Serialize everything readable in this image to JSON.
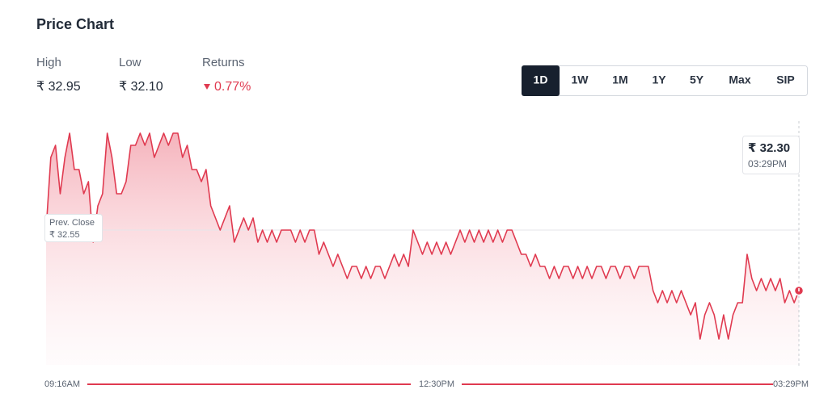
{
  "header": {
    "title": "Price Chart"
  },
  "stats": [
    {
      "label": "High",
      "value": "₹ 32.95"
    },
    {
      "label": "Low",
      "value": "₹ 32.10"
    },
    {
      "label": "Returns",
      "value": "0.77%"
    }
  ],
  "ranges": [
    "1D",
    "1W",
    "1M",
    "1Y",
    "5Y",
    "Max",
    "SIP"
  ],
  "active_range": "1D",
  "chart_data": {
    "type": "line",
    "color": "#e03a50",
    "ylim": [
      32.0,
      33.0
    ],
    "x_labels": [
      "09:16AM",
      "12:30PM",
      "03:29PM"
    ],
    "prev_close": 32.55,
    "prev_close_title": "Prev. Close",
    "prev_close_label": "₹ 32.55",
    "current_label": "₹ 32.30",
    "values": [
      32.55,
      32.85,
      32.9,
      32.7,
      32.85,
      32.95,
      32.8,
      32.8,
      32.7,
      32.75,
      32.5,
      32.65,
      32.7,
      32.95,
      32.85,
      32.7,
      32.7,
      32.75,
      32.9,
      32.9,
      32.95,
      32.9,
      32.95,
      32.85,
      32.9,
      32.95,
      32.9,
      32.95,
      32.95,
      32.85,
      32.9,
      32.8,
      32.8,
      32.75,
      32.8,
      32.65,
      32.6,
      32.55,
      32.6,
      32.65,
      32.5,
      32.55,
      32.6,
      32.55,
      32.6,
      32.5,
      32.55,
      32.5,
      32.55,
      32.5,
      32.55,
      32.55,
      32.55,
      32.5,
      32.55,
      32.5,
      32.55,
      32.55,
      32.45,
      32.5,
      32.45,
      32.4,
      32.45,
      32.4,
      32.35,
      32.4,
      32.4,
      32.35,
      32.4,
      32.35,
      32.4,
      32.4,
      32.35,
      32.4,
      32.45,
      32.4,
      32.45,
      32.4,
      32.55,
      32.5,
      32.45,
      32.5,
      32.45,
      32.5,
      32.45,
      32.5,
      32.45,
      32.5,
      32.55,
      32.5,
      32.55,
      32.5,
      32.55,
      32.5,
      32.55,
      32.5,
      32.55,
      32.5,
      32.55,
      32.55,
      32.5,
      32.45,
      32.45,
      32.4,
      32.45,
      32.4,
      32.4,
      32.35,
      32.4,
      32.35,
      32.4,
      32.4,
      32.35,
      32.4,
      32.35,
      32.4,
      32.35,
      32.4,
      32.4,
      32.35,
      32.4,
      32.4,
      32.35,
      32.4,
      32.4,
      32.35,
      32.4,
      32.4,
      32.4,
      32.3,
      32.25,
      32.3,
      32.25,
      32.3,
      32.25,
      32.3,
      32.25,
      32.2,
      32.25,
      32.1,
      32.2,
      32.25,
      32.2,
      32.1,
      32.2,
      32.1,
      32.2,
      32.25,
      32.25,
      32.45,
      32.35,
      32.3,
      32.35,
      32.3,
      32.35,
      32.3,
      32.35,
      32.25,
      32.3,
      32.25,
      32.3
    ]
  }
}
